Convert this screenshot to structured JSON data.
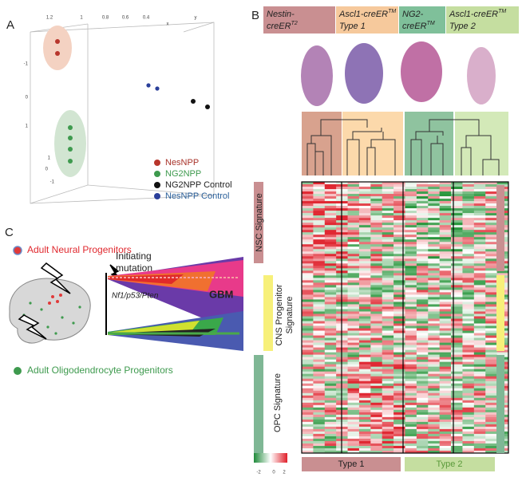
{
  "panel_a": {
    "label": "A",
    "axis_top": [
      "1.2",
      "1",
      "0.8",
      "0.6",
      "0.4",
      "x",
      "y"
    ],
    "axis_left": [
      "-1",
      "0",
      "1",
      "1",
      "0",
      "-1"
    ],
    "legend": [
      "NesNPP",
      "NG2NPP",
      "NG2NPP Control",
      "NesNPP Control"
    ]
  },
  "panel_b": {
    "label": "B",
    "headers": [
      {
        "line1": "Nestin-",
        "line2": "creER",
        "sup": "T2"
      },
      {
        "line1": "Ascl1-creER",
        "sup": "TM",
        "line2": "Type 1"
      },
      {
        "line1": "NG2-",
        "line2": "creER",
        "sup": "TM"
      },
      {
        "line1": "Ascl1-creER",
        "sup": "TM",
        "line2": "Type 2"
      }
    ],
    "signatures": {
      "nsc": "NSC Signature",
      "cns_line1": "CNS Progenitor",
      "cns_line2": "Signature",
      "opc": "OPC Signature"
    },
    "types": [
      "Type 1",
      "Type 2"
    ],
    "colorbar_ticks": [
      "-2",
      "0",
      "2"
    ]
  },
  "panel_c": {
    "label": "C",
    "neural": "Adult Neural Progenitors",
    "initiating_line1": "Initiating",
    "initiating_line2": "mutation",
    "genes": "Nf1/p53/Pten",
    "gbm": "GBM",
    "opc": "Adult Oligodendrocyte Progenitors"
  }
}
